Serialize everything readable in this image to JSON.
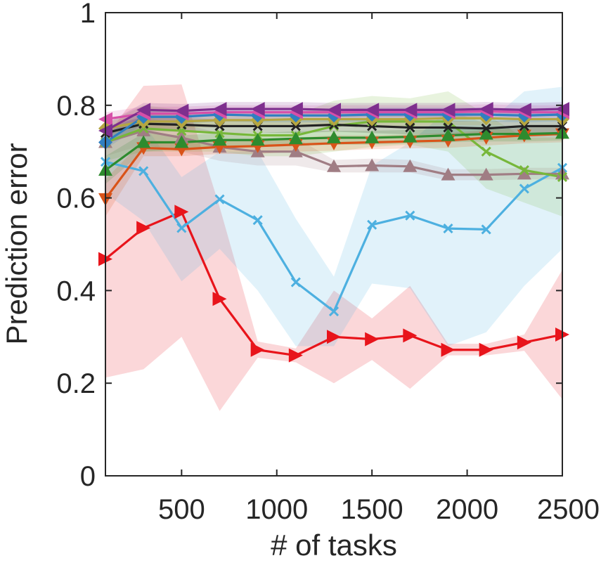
{
  "chart_data": {
    "type": "line",
    "title": "",
    "xlabel": "# of tasks",
    "ylabel": "Prediction error",
    "xlim": [
      100,
      2500
    ],
    "ylim": [
      0,
      1
    ],
    "xticks": [
      500,
      1000,
      1500,
      2000,
      2500
    ],
    "yticks": [
      0,
      0.2,
      0.4,
      0.6,
      0.8,
      1
    ],
    "xtick_labels": [
      "500",
      "1000",
      "1500",
      "2000",
      "2500"
    ],
    "ytick_labels": [
      "0",
      "0.2",
      "0.4",
      "0.6",
      "0.8",
      "1"
    ],
    "x": [
      100,
      300,
      500,
      700,
      900,
      1100,
      1300,
      1500,
      1700,
      1900,
      2100,
      2300,
      2500
    ],
    "series": [
      {
        "name": "red-right-triangle",
        "color": "#e8141b",
        "marker": "triangle-right",
        "values": [
          0.468,
          0.535,
          0.57,
          0.382,
          0.272,
          0.26,
          0.3,
          0.295,
          0.303,
          0.272,
          0.272,
          0.288,
          0.305
        ],
        "lower": [
          0.212,
          0.23,
          0.3,
          0.14,
          0.255,
          0.245,
          0.2,
          0.25,
          0.188,
          0.26,
          0.26,
          0.27,
          0.165
        ],
        "upper": [
          0.73,
          0.842,
          0.845,
          0.58,
          0.29,
          0.275,
          0.4,
          0.34,
          0.41,
          0.285,
          0.285,
          0.305,
          0.445
        ]
      },
      {
        "name": "light-blue-x",
        "color": "#4db0e0",
        "marker": "x",
        "values": [
          0.678,
          0.658,
          0.535,
          0.597,
          0.552,
          0.418,
          0.355,
          0.542,
          0.562,
          0.534,
          0.532,
          0.62,
          0.665
        ],
        "lower": [
          0.61,
          0.55,
          0.42,
          0.49,
          0.4,
          0.28,
          0.28,
          0.415,
          0.405,
          0.28,
          0.31,
          0.41,
          0.49
        ],
        "upper": [
          0.745,
          0.76,
          0.645,
          0.7,
          0.7,
          0.555,
          0.43,
          0.67,
          0.72,
          0.79,
          0.76,
          0.83,
          0.84
        ]
      },
      {
        "name": "mauve-up-triangle",
        "color": "#a07d84",
        "marker": "triangle-up",
        "values": [
          0.72,
          0.745,
          0.73,
          0.71,
          0.7,
          0.7,
          0.668,
          0.67,
          0.668,
          0.65,
          0.65,
          0.652,
          0.652
        ],
        "lower": [
          0.69,
          0.715,
          0.7,
          0.68,
          0.67,
          0.67,
          0.655,
          0.655,
          0.655,
          0.638,
          0.638,
          0.64,
          0.64
        ],
        "upper": [
          0.75,
          0.775,
          0.76,
          0.74,
          0.73,
          0.73,
          0.682,
          0.685,
          0.682,
          0.662,
          0.662,
          0.665,
          0.665
        ]
      },
      {
        "name": "light-green-x",
        "color": "#77b73a",
        "marker": "x",
        "values": [
          0.72,
          0.75,
          0.745,
          0.74,
          0.735,
          0.735,
          0.755,
          0.765,
          0.765,
          0.765,
          0.7,
          0.66,
          0.645
        ],
        "lower": [
          0.68,
          0.7,
          0.7,
          0.7,
          0.69,
          0.69,
          0.7,
          0.71,
          0.715,
          0.7,
          0.62,
          0.59,
          0.56
        ],
        "upper": [
          0.76,
          0.8,
          0.79,
          0.78,
          0.78,
          0.78,
          0.81,
          0.82,
          0.815,
          0.83,
          0.78,
          0.73,
          0.73
        ]
      },
      {
        "name": "orange-down-triangle",
        "color": "#d95319",
        "marker": "triangle-down",
        "values": [
          0.598,
          0.708,
          0.705,
          0.71,
          0.712,
          0.715,
          0.718,
          0.72,
          0.722,
          0.724,
          0.73,
          0.735,
          0.738
        ],
        "lower": [
          0.56,
          0.69,
          0.69,
          0.695,
          0.695,
          0.7,
          0.702,
          0.705,
          0.707,
          0.708,
          0.713,
          0.718,
          0.72
        ],
        "upper": [
          0.64,
          0.725,
          0.72,
          0.725,
          0.728,
          0.73,
          0.735,
          0.735,
          0.737,
          0.74,
          0.746,
          0.752,
          0.755
        ]
      },
      {
        "name": "green-up-triangle",
        "color": "#2e8b2e",
        "marker": "triangle-up",
        "values": [
          0.66,
          0.72,
          0.72,
          0.725,
          0.725,
          0.728,
          0.73,
          0.73,
          0.732,
          0.735,
          0.738,
          0.738,
          0.74
        ],
        "lower": [
          0.63,
          0.7,
          0.705,
          0.71,
          0.71,
          0.712,
          0.715,
          0.715,
          0.717,
          0.72,
          0.722,
          0.722,
          0.724
        ],
        "upper": [
          0.69,
          0.74,
          0.735,
          0.74,
          0.74,
          0.744,
          0.745,
          0.745,
          0.747,
          0.75,
          0.754,
          0.754,
          0.756
        ]
      },
      {
        "name": "black-x",
        "color": "#222222",
        "marker": "x",
        "values": [
          0.74,
          0.76,
          0.758,
          0.755,
          0.755,
          0.755,
          0.758,
          0.755,
          0.752,
          0.752,
          0.75,
          0.755,
          0.755
        ],
        "lower": [
          0.725,
          0.745,
          0.743,
          0.74,
          0.74,
          0.74,
          0.743,
          0.74,
          0.737,
          0.737,
          0.735,
          0.74,
          0.74
        ],
        "upper": [
          0.755,
          0.775,
          0.773,
          0.77,
          0.77,
          0.77,
          0.773,
          0.77,
          0.767,
          0.767,
          0.765,
          0.77,
          0.77
        ]
      },
      {
        "name": "olive-diamond",
        "color": "#b5a642",
        "marker": "diamond",
        "values": [
          0.75,
          0.765,
          0.765,
          0.768,
          0.768,
          0.77,
          0.77,
          0.77,
          0.77,
          0.772,
          0.772,
          0.77,
          0.77
        ],
        "lower": [
          0.735,
          0.75,
          0.75,
          0.753,
          0.753,
          0.755,
          0.755,
          0.755,
          0.755,
          0.757,
          0.757,
          0.755,
          0.755
        ],
        "upper": [
          0.765,
          0.78,
          0.78,
          0.783,
          0.783,
          0.785,
          0.785,
          0.785,
          0.785,
          0.787,
          0.787,
          0.785,
          0.785
        ]
      },
      {
        "name": "blue-diamond",
        "color": "#2f7fc1",
        "marker": "diamond",
        "values": [
          0.72,
          0.775,
          0.775,
          0.78,
          0.778,
          0.778,
          0.778,
          0.78,
          0.78,
          0.78,
          0.78,
          0.778,
          0.78
        ],
        "lower": [
          0.705,
          0.76,
          0.76,
          0.765,
          0.763,
          0.763,
          0.763,
          0.765,
          0.765,
          0.765,
          0.765,
          0.763,
          0.765
        ],
        "upper": [
          0.735,
          0.79,
          0.79,
          0.795,
          0.793,
          0.793,
          0.793,
          0.795,
          0.795,
          0.795,
          0.795,
          0.793,
          0.795
        ]
      },
      {
        "name": "pink-left-triangle",
        "color": "#d64fa8",
        "marker": "triangle-left",
        "values": [
          0.77,
          0.782,
          0.782,
          0.785,
          0.785,
          0.785,
          0.785,
          0.785,
          0.785,
          0.785,
          0.787,
          0.785,
          0.785
        ],
        "lower": [
          0.755,
          0.767,
          0.767,
          0.77,
          0.77,
          0.77,
          0.77,
          0.77,
          0.77,
          0.77,
          0.772,
          0.77,
          0.77
        ],
        "upper": [
          0.785,
          0.797,
          0.797,
          0.8,
          0.8,
          0.8,
          0.8,
          0.8,
          0.8,
          0.8,
          0.802,
          0.8,
          0.8
        ]
      },
      {
        "name": "purple-left-triangle",
        "color": "#7e2f8e",
        "marker": "triangle-left",
        "values": [
          0.745,
          0.79,
          0.788,
          0.792,
          0.792,
          0.792,
          0.79,
          0.79,
          0.79,
          0.79,
          0.792,
          0.79,
          0.792
        ],
        "lower": [
          0.73,
          0.775,
          0.773,
          0.777,
          0.777,
          0.777,
          0.775,
          0.775,
          0.775,
          0.775,
          0.777,
          0.775,
          0.777
        ],
        "upper": [
          0.76,
          0.805,
          0.803,
          0.807,
          0.807,
          0.807,
          0.805,
          0.805,
          0.805,
          0.805,
          0.807,
          0.805,
          0.807
        ]
      }
    ]
  }
}
